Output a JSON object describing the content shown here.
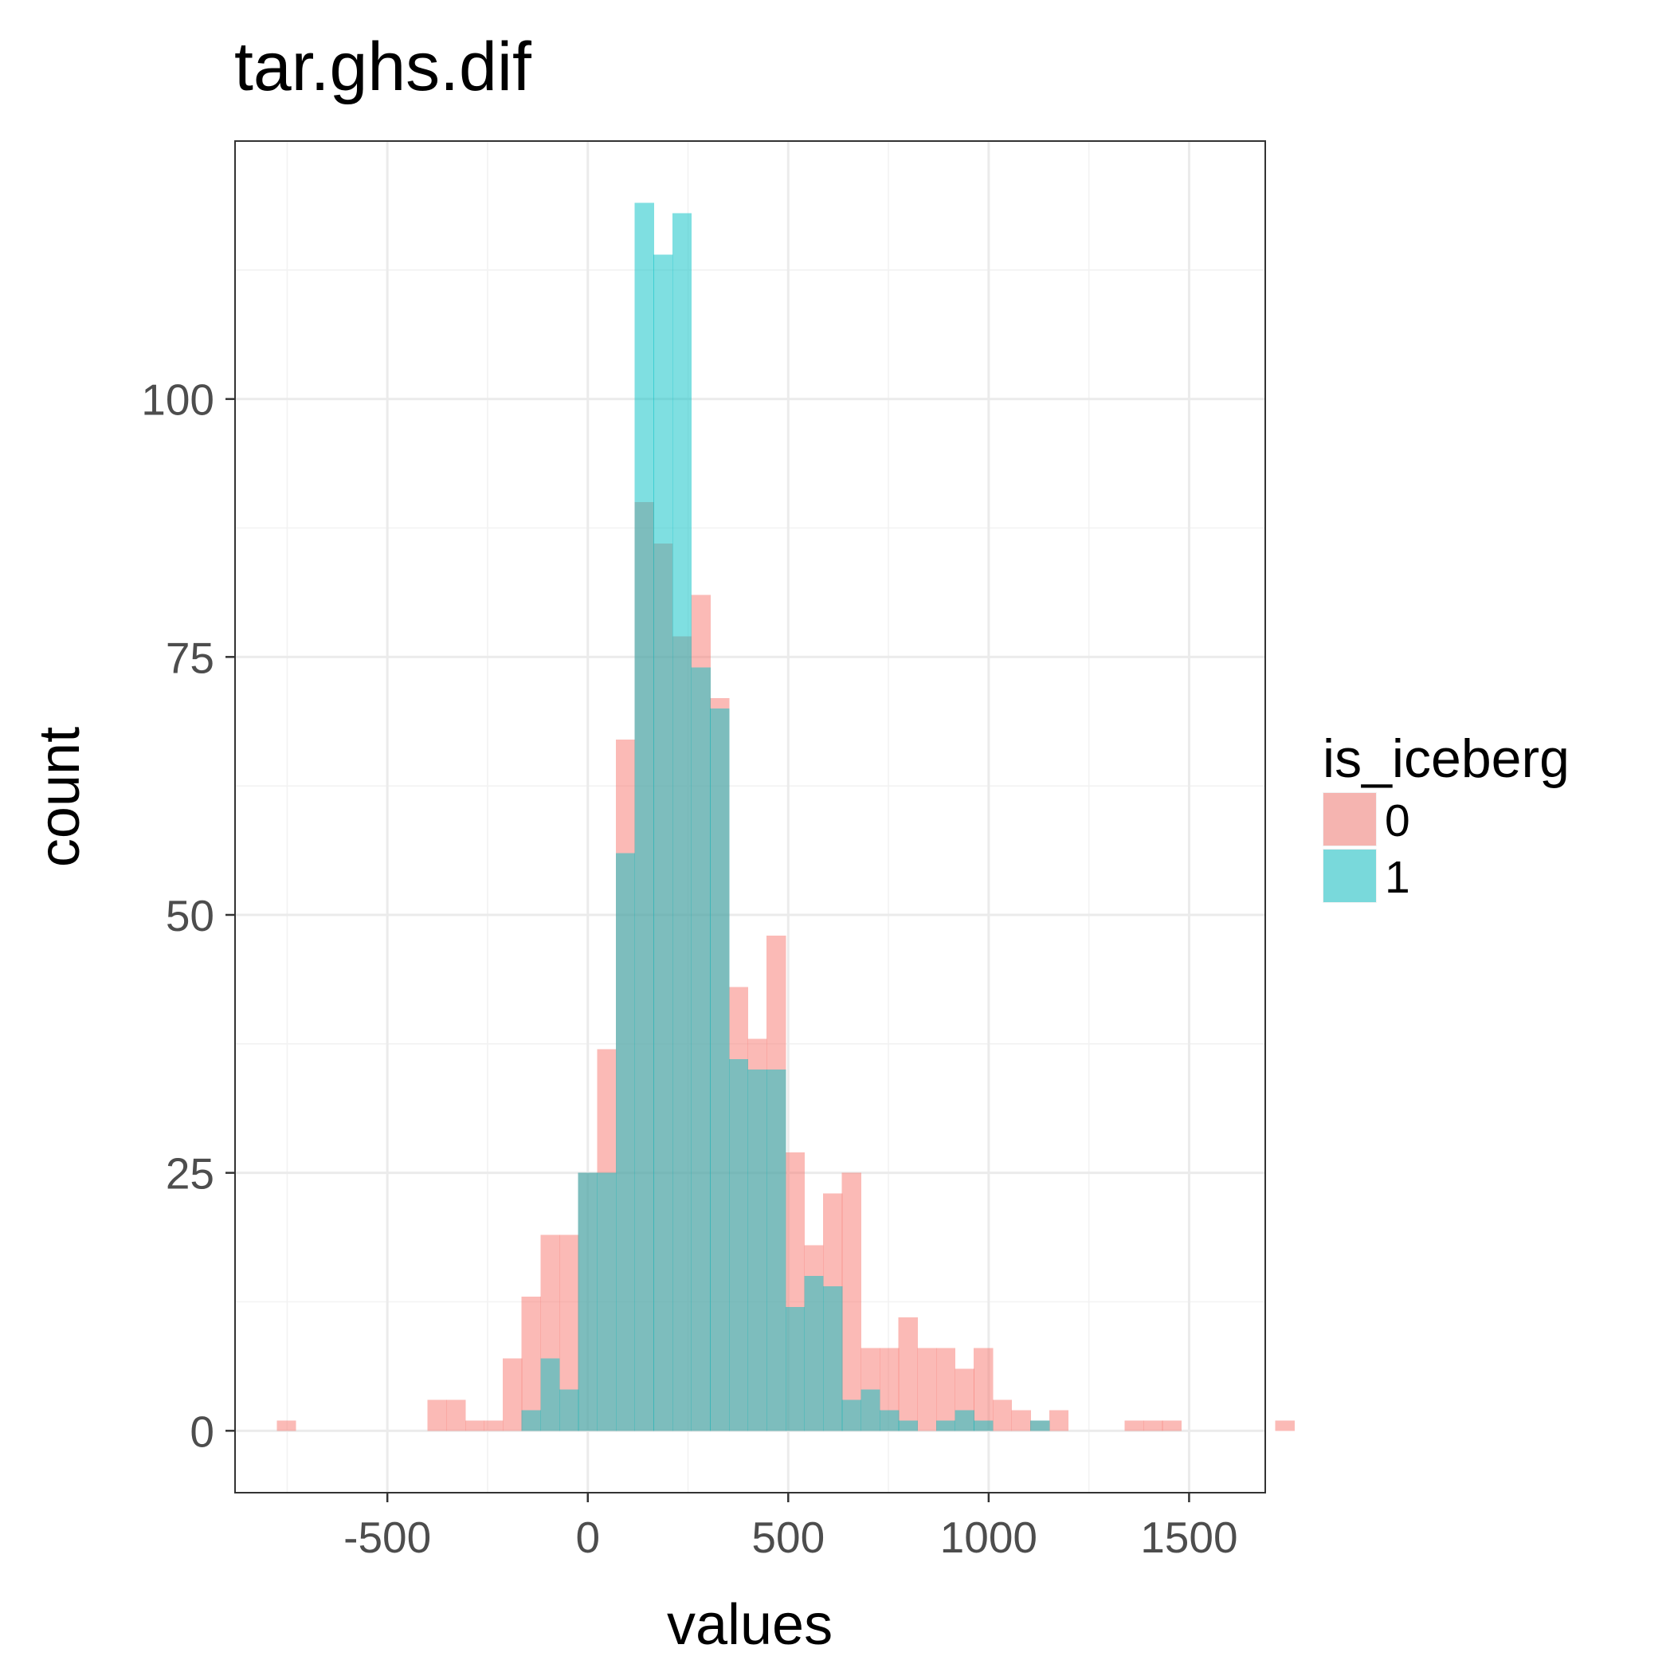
{
  "chart_data": {
    "type": "bar",
    "title": "tar.ghs.dif",
    "xlabel": "values",
    "ylabel": "count",
    "xlim": [
      -880,
      1690
    ],
    "ylim": [
      -6,
      125
    ],
    "x_ticks": [
      -500,
      0,
      500,
      1000,
      1500
    ],
    "x_tick_labels": [
      "-500",
      "0",
      "500",
      "1000",
      "1500"
    ],
    "y_ticks": [
      0,
      25,
      50,
      75,
      100
    ],
    "y_tick_labels": [
      "0",
      "25",
      "50",
      "75",
      "100"
    ],
    "grid": true,
    "legend": {
      "title": "is_iceberg",
      "placement": "right"
    },
    "bin_width": 47,
    "bin_start": -776,
    "series": [
      {
        "name": "0",
        "color": "#F8766D",
        "values": [
          1,
          0,
          0,
          0,
          0,
          0,
          0,
          0,
          3,
          3,
          1,
          1,
          7,
          13,
          19,
          19,
          25,
          37,
          67,
          90,
          86,
          77,
          81,
          71,
          43,
          38,
          48,
          27,
          18,
          23,
          25,
          8,
          8,
          11,
          8,
          8,
          6,
          8,
          3,
          2,
          1,
          2,
          0,
          0,
          0,
          1,
          1,
          1,
          0,
          0,
          0,
          0,
          0,
          1,
          0
        ]
      },
      {
        "name": "1",
        "color": "#00BFC4",
        "values": [
          0,
          0,
          0,
          0,
          0,
          0,
          0,
          0,
          0,
          0,
          0,
          0,
          0,
          2,
          7,
          4,
          25,
          25,
          56,
          119,
          114,
          118,
          74,
          70,
          36,
          35,
          35,
          12,
          15,
          14,
          3,
          4,
          2,
          1,
          0,
          1,
          2,
          1,
          0,
          0,
          1,
          0,
          0,
          0,
          0,
          0,
          0,
          0,
          0,
          0,
          0,
          0,
          0,
          0,
          0
        ]
      }
    ]
  }
}
